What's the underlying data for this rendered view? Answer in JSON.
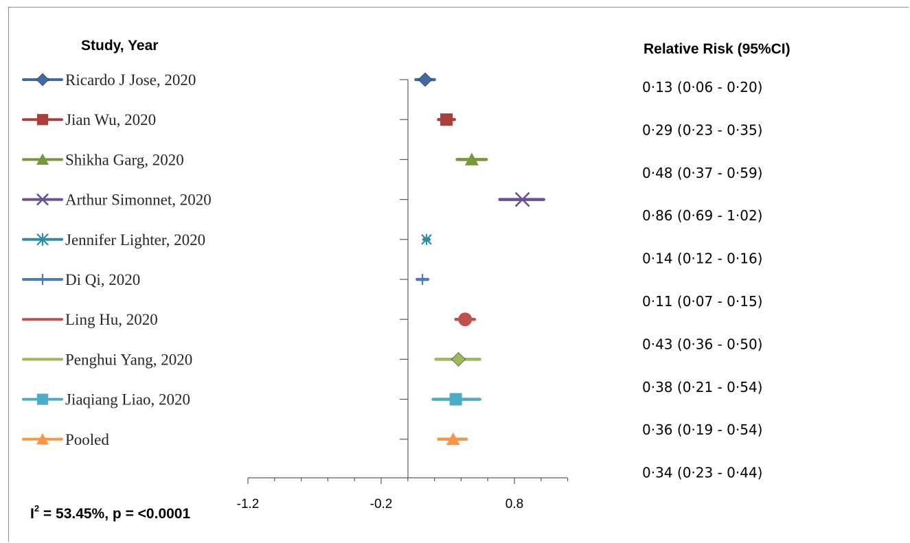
{
  "chart_data": {
    "type": "forest",
    "headers": {
      "study": "Study, Year",
      "estimate": "Relative Risk (95%CI)"
    },
    "x_ticks": [
      -1.2,
      -0.2,
      0.8
    ],
    "x_tick_labels": [
      "-1.2",
      "-0.2",
      "0.8"
    ],
    "xlim": [
      -1.2,
      1.17
    ],
    "heterogeneity": {
      "prefix": "I",
      "superscript": "2",
      "text": " = 53.45%, p = <0.0001"
    },
    "studies": [
      {
        "name": "Ricardo J Jose, 2020",
        "rr": 0.13,
        "lo": 0.06,
        "hi": 0.2,
        "label": "0·13 (0·06 - 0·20)",
        "color": "#3e6ba8",
        "marker": "diamond"
      },
      {
        "name": "Jian Wu, 2020",
        "rr": 0.29,
        "lo": 0.23,
        "hi": 0.35,
        "label": "0·29 (0·23 - 0·35)",
        "color": "#a83f3c",
        "marker": "square"
      },
      {
        "name": "Shikha Garg, 2020",
        "rr": 0.48,
        "lo": 0.37,
        "hi": 0.59,
        "label": "0·48 (0·37 - 0·59)",
        "color": "#78973d",
        "marker": "triangle"
      },
      {
        "name": "Arthur Simonnet, 2020",
        "rr": 0.86,
        "lo": 0.69,
        "hi": 1.02,
        "label": "0·86 (0·69 - 1·02)",
        "color": "#6a5190",
        "marker": "x"
      },
      {
        "name": "Jennifer Lighter, 2020",
        "rr": 0.14,
        "lo": 0.12,
        "hi": 0.16,
        "label": "0·14 (0·12 - 0·16)",
        "color": "#2f8da2",
        "marker": "star"
      },
      {
        "name": "Di Qi, 2020",
        "rr": 0.11,
        "lo": 0.07,
        "hi": 0.15,
        "label": "0·11 (0·07 - 0·15)",
        "color": "#4a7bbf",
        "marker": "plus"
      },
      {
        "name": "Ling Hu, 2020",
        "rr": 0.43,
        "lo": 0.36,
        "hi": 0.5,
        "label": "0·43 (0·36 - 0·50)",
        "color": "#c0504d",
        "marker": "circle"
      },
      {
        "name": "Penghui Yang, 2020",
        "rr": 0.38,
        "lo": 0.21,
        "hi": 0.54,
        "label": "0·38 (0·21 - 0·54)",
        "color": "#9bbb59",
        "marker": "diamond"
      },
      {
        "name": "Jiaqiang Liao, 2020",
        "rr": 0.36,
        "lo": 0.19,
        "hi": 0.54,
        "label": "0·36 (0·19 - 0·54)",
        "color": "#4bacc6",
        "marker": "square"
      },
      {
        "name": "Pooled",
        "rr": 0.34,
        "lo": 0.23,
        "hi": 0.44,
        "label": "0·34 (0·23 - 0·44)",
        "color": "#f79646",
        "marker": "triangle"
      }
    ]
  }
}
